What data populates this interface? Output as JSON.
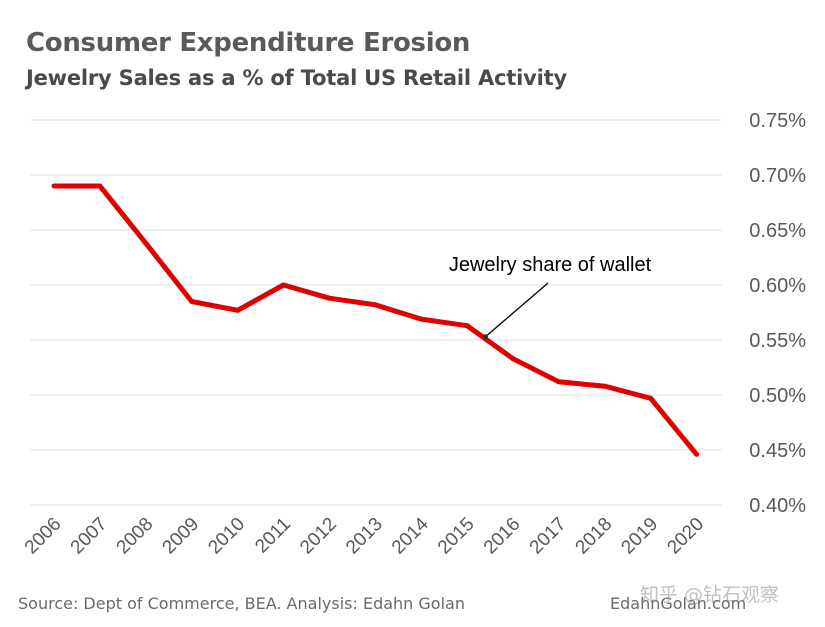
{
  "colors": {
    "line": "#e00000",
    "grid": "#d5e3e0",
    "axis_text": "#595959",
    "annotation": "#000000"
  },
  "footer": {
    "source": "Source: Dept of Commerce, BEA. Analysis: Edahn Golan",
    "site": "EdahnGolan.com",
    "watermark": "知乎 @钻石观察"
  },
  "chart_data": {
    "type": "line",
    "title": "Consumer Expenditure Erosion",
    "subtitle": "Jewelry Sales as a % of Total US Retail Activity",
    "xlabel": "",
    "ylabel": "",
    "categories": [
      "2006",
      "2007",
      "2008",
      "2009",
      "2010",
      "2011",
      "2012",
      "2013",
      "2014",
      "2015",
      "2016",
      "2017",
      "2018",
      "2019",
      "2020"
    ],
    "series": [
      {
        "name": "Jewelry share of wallet",
        "values": [
          0.69,
          0.69,
          0.638,
          0.585,
          0.577,
          0.6,
          0.588,
          0.582,
          0.569,
          0.563,
          0.533,
          0.512,
          0.508,
          0.497,
          0.446
        ]
      }
    ],
    "ylim": [
      0.4,
      0.75
    ],
    "yticks": [
      0.4,
      0.45,
      0.5,
      0.55,
      0.6,
      0.65,
      0.7,
      0.75
    ],
    "ytick_labels": [
      "0.40%",
      "0.45%",
      "0.50%",
      "0.55%",
      "0.60%",
      "0.65%",
      "0.70%",
      "0.75%"
    ],
    "grid": true,
    "annotation": {
      "text": "Jewelry share of wallet",
      "x": 9.4,
      "y": 0.553
    }
  }
}
